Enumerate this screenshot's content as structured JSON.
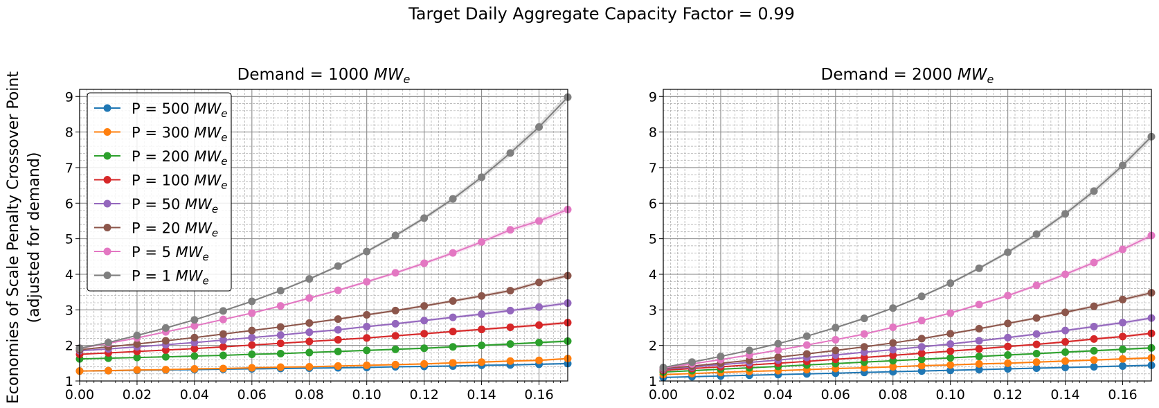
{
  "figure": {
    "suptitle": "Target Daily Aggregate Capacity Factor = 0.99",
    "ylabel_line1": "Economies of Scale Penalty Crossover Point",
    "ylabel_line2": "(adjusted for demand)"
  },
  "chart_data": [
    {
      "type": "line",
      "title_prefix": "Demand = 1000 ",
      "title_unit": "MW",
      "title_sub": "e",
      "xlim": [
        0.0,
        0.17
      ],
      "ylim": [
        1,
        9.2
      ],
      "xticks": [
        "0.00",
        "0.02",
        "0.04",
        "0.06",
        "0.08",
        "0.10",
        "0.12",
        "0.14",
        "0.16"
      ],
      "yticks": [
        "1",
        "2",
        "3",
        "4",
        "5",
        "6",
        "7",
        "8",
        "9"
      ],
      "grid": "major-and-minor",
      "legend": "upper-left",
      "x": [
        0.0,
        0.01,
        0.02,
        0.03,
        0.04,
        0.05,
        0.06,
        0.07,
        0.08,
        0.09,
        0.1,
        0.11,
        0.12,
        0.13,
        0.14,
        0.15,
        0.16,
        0.17
      ],
      "series": [
        {
          "name": "P = 500 ",
          "unit": "MW",
          "sub": "e",
          "color": "#1f77b4",
          "values": [
            1.28,
            1.29,
            1.3,
            1.31,
            1.32,
            1.33,
            1.34,
            1.35,
            1.36,
            1.37,
            1.38,
            1.4,
            1.41,
            1.42,
            1.44,
            1.45,
            1.47,
            1.49
          ]
        },
        {
          "name": "P = 300 ",
          "unit": "MW",
          "sub": "e",
          "color": "#ff7f0e",
          "values": [
            1.28,
            1.29,
            1.31,
            1.32,
            1.34,
            1.35,
            1.37,
            1.39,
            1.4,
            1.42,
            1.44,
            1.46,
            1.48,
            1.51,
            1.53,
            1.56,
            1.58,
            1.63
          ]
        },
        {
          "name": "P = 200 ",
          "unit": "MW",
          "sub": "e",
          "color": "#2ca02c",
          "values": [
            1.62,
            1.64,
            1.66,
            1.68,
            1.7,
            1.72,
            1.75,
            1.77,
            1.8,
            1.83,
            1.86,
            1.89,
            1.92,
            1.96,
            2.0,
            2.04,
            2.08,
            2.12
          ]
        },
        {
          "name": "P = 100 ",
          "unit": "MW",
          "sub": "e",
          "color": "#d62728",
          "values": [
            1.75,
            1.79,
            1.83,
            1.87,
            1.91,
            1.96,
            2.01,
            2.06,
            2.11,
            2.16,
            2.21,
            2.27,
            2.33,
            2.39,
            2.45,
            2.51,
            2.57,
            2.64
          ]
        },
        {
          "name": "P = 50 ",
          "unit": "MW",
          "sub": "e",
          "color": "#9467bd",
          "values": [
            1.85,
            1.9,
            1.96,
            2.02,
            2.08,
            2.15,
            2.22,
            2.29,
            2.37,
            2.44,
            2.53,
            2.61,
            2.7,
            2.79,
            2.88,
            2.98,
            3.08,
            3.19
          ]
        },
        {
          "name": "P = 20 ",
          "unit": "MW",
          "sub": "e",
          "color": "#8c564b",
          "values": [
            1.88,
            1.96,
            2.04,
            2.13,
            2.22,
            2.32,
            2.42,
            2.52,
            2.63,
            2.74,
            2.86,
            2.98,
            3.11,
            3.25,
            3.39,
            3.54,
            3.77,
            3.96
          ]
        },
        {
          "name": "P = 5 ",
          "unit": "MW",
          "sub": "e",
          "color": "#e377c2",
          "values": [
            1.92,
            2.06,
            2.21,
            2.38,
            2.55,
            2.73,
            2.91,
            3.11,
            3.33,
            3.55,
            3.79,
            4.04,
            4.31,
            4.6,
            4.91,
            5.25,
            5.5,
            5.82
          ]
        },
        {
          "name": "P = 1 ",
          "unit": "MW",
          "sub": "e",
          "color": "#7f7f7f",
          "values": [
            1.92,
            2.08,
            2.28,
            2.49,
            2.72,
            2.97,
            3.24,
            3.54,
            3.87,
            4.23,
            4.64,
            5.09,
            5.58,
            6.12,
            6.73,
            7.41,
            8.14,
            8.98
          ]
        }
      ]
    },
    {
      "type": "line",
      "title_prefix": "Demand = 2000 ",
      "title_unit": "MW",
      "title_sub": "e",
      "xlim": [
        0.0,
        0.17
      ],
      "ylim": [
        1,
        9.2
      ],
      "xticks": [
        "0.00",
        "0.02",
        "0.04",
        "0.06",
        "0.08",
        "0.10",
        "0.12",
        "0.14",
        "0.16"
      ],
      "yticks": [
        "1",
        "2",
        "3",
        "4",
        "5",
        "6",
        "7",
        "8",
        "9"
      ],
      "grid": "major-and-minor",
      "legend": "none",
      "x": [
        0.0,
        0.01,
        0.02,
        0.03,
        0.04,
        0.05,
        0.06,
        0.07,
        0.08,
        0.09,
        0.1,
        0.11,
        0.12,
        0.13,
        0.14,
        0.15,
        0.16,
        0.17
      ],
      "series": [
        {
          "name": "P = 500 ",
          "color": "#1f77b4",
          "values": [
            1.1,
            1.12,
            1.14,
            1.16,
            1.18,
            1.2,
            1.22,
            1.24,
            1.26,
            1.28,
            1.3,
            1.32,
            1.34,
            1.36,
            1.38,
            1.4,
            1.42,
            1.44
          ]
        },
        {
          "name": "P = 300 ",
          "color": "#ff7f0e",
          "values": [
            1.18,
            1.21,
            1.24,
            1.27,
            1.29,
            1.32,
            1.35,
            1.37,
            1.4,
            1.43,
            1.45,
            1.48,
            1.5,
            1.53,
            1.56,
            1.59,
            1.62,
            1.65
          ]
        },
        {
          "name": "P = 200 ",
          "color": "#2ca02c",
          "values": [
            1.25,
            1.29,
            1.33,
            1.37,
            1.41,
            1.45,
            1.49,
            1.53,
            1.57,
            1.61,
            1.65,
            1.69,
            1.73,
            1.77,
            1.81,
            1.85,
            1.89,
            1.93
          ]
        },
        {
          "name": "P = 100 ",
          "color": "#d62728",
          "values": [
            1.3,
            1.35,
            1.4,
            1.45,
            1.5,
            1.55,
            1.61,
            1.66,
            1.72,
            1.78,
            1.84,
            1.9,
            1.97,
            2.03,
            2.1,
            2.18,
            2.25,
            2.34
          ]
        },
        {
          "name": "P = 50 ",
          "color": "#9467bd",
          "values": [
            1.33,
            1.39,
            1.46,
            1.52,
            1.59,
            1.66,
            1.73,
            1.81,
            1.88,
            1.96,
            2.04,
            2.13,
            2.22,
            2.32,
            2.42,
            2.53,
            2.64,
            2.77
          ]
        },
        {
          "name": "P = 20 ",
          "color": "#8c564b",
          "values": [
            1.35,
            1.42,
            1.5,
            1.58,
            1.67,
            1.76,
            1.86,
            1.96,
            2.07,
            2.19,
            2.33,
            2.47,
            2.62,
            2.77,
            2.93,
            3.1,
            3.29,
            3.48
          ]
        },
        {
          "name": "P = 5 ",
          "color": "#e377c2",
          "values": [
            1.37,
            1.48,
            1.6,
            1.73,
            1.87,
            2.01,
            2.16,
            2.32,
            2.51,
            2.7,
            2.91,
            3.15,
            3.4,
            3.69,
            4.0,
            4.33,
            4.7,
            5.09
          ]
        },
        {
          "name": "P = 1 ",
          "color": "#7f7f7f",
          "values": [
            1.38,
            1.53,
            1.69,
            1.86,
            2.05,
            2.26,
            2.5,
            2.76,
            3.05,
            3.38,
            3.75,
            4.17,
            4.62,
            5.13,
            5.7,
            6.34,
            7.06,
            7.87
          ]
        }
      ]
    }
  ]
}
